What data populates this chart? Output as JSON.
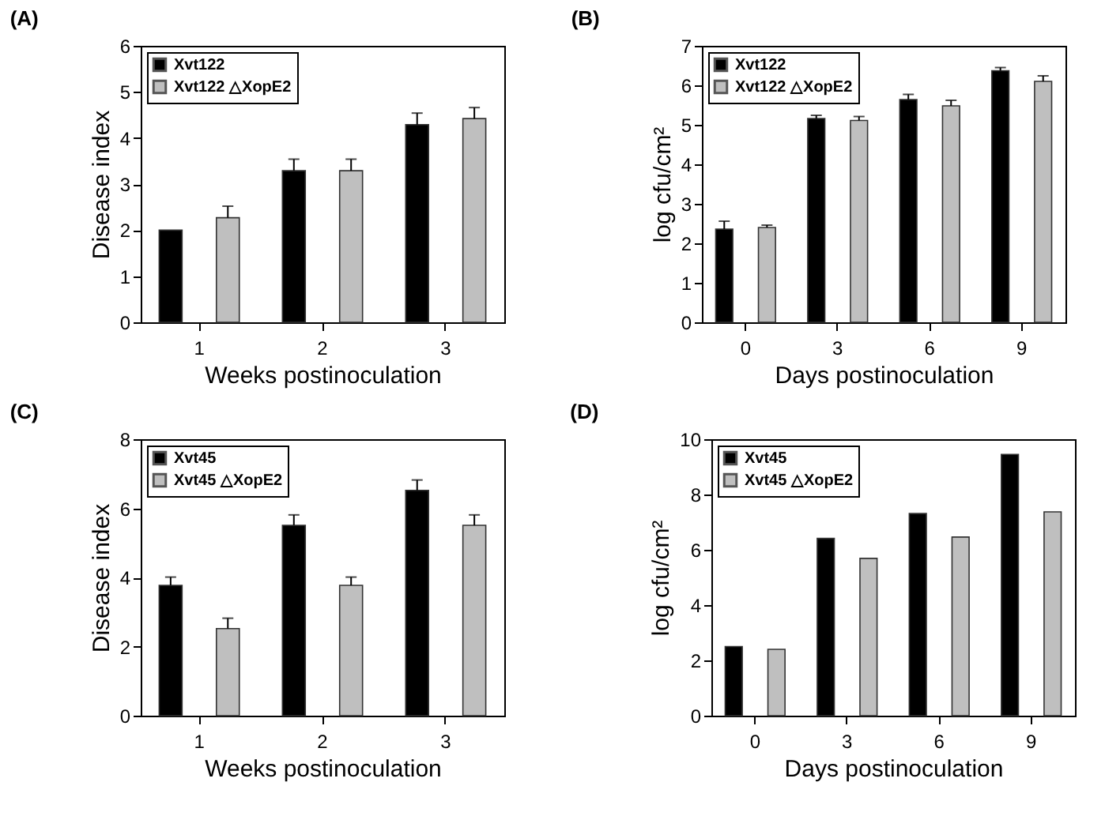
{
  "chart_data": [
    {
      "type": "bar",
      "title": "(A)",
      "xlabel": "Weeks postinoculation",
      "ylabel": "Disease index",
      "categories": [
        "1",
        "2",
        "3"
      ],
      "ylim": [
        0,
        6
      ],
      "yticks": [
        0,
        1,
        2,
        3,
        4,
        5,
        6
      ],
      "grid": false,
      "legend": "top left",
      "series": [
        {
          "name": "Xvt122",
          "color": "#000000",
          "values": [
            2.0,
            3.29,
            4.29
          ],
          "errors": [
            null,
            [
              3.29,
              3.54
            ],
            [
              4.29,
              4.54
            ]
          ]
        },
        {
          "name": "Xvt122 △XopE2",
          "color": "#bfbfbf",
          "values": [
            2.27,
            3.29,
            4.42
          ],
          "errors": [
            [
              2.27,
              2.52
            ],
            [
              3.29,
              3.54
            ],
            [
              4.42,
              4.66
            ]
          ]
        }
      ]
    },
    {
      "type": "bar",
      "title": "(B)",
      "xlabel": "Days postinoculation",
      "ylabel": "log cfu/cm²",
      "categories": [
        "0",
        "3",
        "6",
        "9"
      ],
      "ylim": [
        0,
        7
      ],
      "yticks": [
        0,
        1,
        2,
        3,
        4,
        5,
        6,
        7
      ],
      "grid": false,
      "legend": "top left",
      "series": [
        {
          "name": "Xvt122",
          "color": "#000000",
          "values": [
            2.36,
            5.16,
            5.64,
            6.37
          ],
          "errors": [
            [
              2.36,
              2.56
            ],
            [
              5.16,
              5.24
            ],
            [
              5.64,
              5.77
            ],
            [
              6.37,
              6.45
            ]
          ]
        },
        {
          "name": "Xvt122 △XopE2",
          "color": "#bfbfbf",
          "values": [
            2.4,
            5.11,
            5.48,
            6.1
          ],
          "errors": [
            [
              2.4,
              2.46
            ],
            [
              5.11,
              5.21
            ],
            [
              5.48,
              5.62
            ],
            [
              6.1,
              6.24
            ]
          ]
        }
      ]
    },
    {
      "type": "bar",
      "title": "(C)",
      "xlabel": "Weeks postinoculation",
      "ylabel": "Disease index",
      "categories": [
        "1",
        "2",
        "3"
      ],
      "ylim": [
        0,
        8
      ],
      "yticks": [
        0,
        2,
        4,
        6,
        8
      ],
      "grid": false,
      "legend": "top left",
      "series": [
        {
          "name": "Xvt45",
          "color": "#000000",
          "values": [
            3.77,
            5.51,
            6.52
          ],
          "errors": [
            [
              3.77,
              4.01
            ],
            [
              5.51,
              5.81
            ],
            [
              6.52,
              6.82
            ]
          ]
        },
        {
          "name": "Xvt45 △XopE2",
          "color": "#bfbfbf",
          "values": [
            2.52,
            3.77,
            5.51
          ],
          "errors": [
            [
              2.52,
              2.82
            ],
            [
              3.77,
              4.01
            ],
            [
              5.51,
              5.81
            ]
          ]
        }
      ]
    },
    {
      "type": "bar",
      "title": "(D)",
      "xlabel": "Days postinoculation",
      "ylabel": "log cfu/cm²",
      "categories": [
        "0",
        "3",
        "6",
        "9"
      ],
      "ylim": [
        0,
        10
      ],
      "yticks": [
        0,
        2,
        4,
        6,
        8,
        10
      ],
      "grid": false,
      "legend": "top left",
      "series": [
        {
          "name": "Xvt45",
          "color": "#000000",
          "values": [
            2.5,
            6.41,
            7.31,
            9.45
          ]
        },
        {
          "name": "Xvt45 △XopE2",
          "color": "#bfbfbf",
          "values": [
            2.4,
            5.69,
            6.46,
            7.37
          ]
        }
      ]
    }
  ]
}
